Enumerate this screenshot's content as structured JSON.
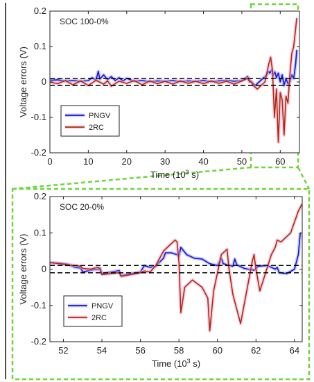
{
  "colors": {
    "pngv": "#1414d2",
    "rc2": "#b12a10",
    "pngv_halo": "#9da4f5",
    "rc2_halo": "#f0a9cc",
    "threshold": "#000000",
    "zoom_box": "#6dd63a",
    "zoom_box_fill": "#eefbe5"
  },
  "chart_data": [
    {
      "type": "line",
      "annotation": "SOC 100-0%",
      "xlabel_main": "Time (10",
      "xlabel_sup": "3",
      "xlabel_end": " s)",
      "ylabel": "Voltage errors (V)",
      "xlim": [
        0,
        65
      ],
      "ylim": [
        -0.2,
        0.2
      ],
      "xticks": [
        0,
        10,
        20,
        30,
        40,
        50,
        60
      ],
      "yticks": [
        -0.2,
        -0.1,
        0,
        0.1,
        0.2
      ],
      "xtick_labels": [
        "0",
        "10",
        "20",
        "30",
        "40",
        "50",
        "60"
      ],
      "ytick_labels": [
        "-0.2",
        "-0.1",
        "0",
        "0.1",
        "0.2"
      ],
      "grid": false,
      "legend_position": "bottom-left",
      "thresholds": [
        0.01,
        -0.01
      ],
      "series": [
        {
          "name": "PNGV",
          "x": [
            0,
            2,
            4,
            6,
            8,
            10,
            11,
            12,
            12.6,
            13,
            14,
            15,
            16,
            17,
            18,
            19,
            20,
            22,
            24,
            26,
            28,
            30,
            32,
            34,
            36,
            38,
            40,
            42,
            44,
            46,
            48,
            50,
            51.5,
            52,
            52.5,
            53.5,
            54.5,
            55.5,
            56.5,
            57,
            57.3,
            57.8,
            58.2,
            58.6,
            59,
            59.5,
            60,
            60.5,
            61,
            61.5,
            62,
            62.5,
            63,
            63.5,
            64,
            64.3
          ],
          "y": [
            0.005,
            0.006,
            0.003,
            0.004,
            0.002,
            0.004,
            0.012,
            0.005,
            0.03,
            0.008,
            0.02,
            0.006,
            0.015,
            0.004,
            0.012,
            0.003,
            0.01,
            0.002,
            0.004,
            0.001,
            0.003,
            0.002,
            0.004,
            0.001,
            0.003,
            0.002,
            0.004,
            0.001,
            0.003,
            0.005,
            0.002,
            0.004,
            0.015,
            0.006,
            0.0,
            -0.01,
            0.0,
            0.01,
            0.02,
            0.03,
            0.025,
            0.035,
            0.02,
            0.028,
            0.012,
            0.025,
            0.0,
            0.02,
            -0.01,
            0.01,
            -0.005,
            0.0,
            0.02,
            0.01,
            0.05,
            0.09
          ]
        },
        {
          "name": "2RC",
          "x": [
            0,
            2,
            4,
            6,
            8,
            10,
            12,
            14,
            15,
            16,
            18,
            20,
            22,
            24,
            26,
            28,
            30,
            32,
            34,
            36,
            38,
            40,
            42,
            44,
            46,
            48,
            50,
            51.5,
            52,
            52.5,
            53,
            54,
            55,
            56,
            57,
            57.5,
            58,
            58.5,
            59,
            59.5,
            60,
            60.5,
            61,
            61.5,
            62,
            62.5,
            63,
            63.5,
            64,
            64.3
          ],
          "y": [
            0.0,
            -0.005,
            0.004,
            -0.008,
            0.003,
            -0.01,
            0.005,
            -0.006,
            0.003,
            -0.012,
            0.002,
            -0.004,
            0.004,
            -0.008,
            0.003,
            -0.005,
            0.002,
            -0.006,
            0.003,
            -0.004,
            0.002,
            -0.005,
            0.003,
            -0.004,
            0.002,
            -0.006,
            0.003,
            0.01,
            0.0,
            0.0,
            -0.01,
            -0.02,
            -0.01,
            0.0,
            0.05,
            0.07,
            0.03,
            -0.1,
            -0.02,
            -0.17,
            -0.03,
            -0.05,
            -0.15,
            -0.04,
            -0.06,
            0.02,
            0.08,
            0.1,
            0.15,
            0.18
          ]
        }
      ]
    },
    {
      "type": "line",
      "annotation": "SOC 20-0%",
      "xlabel_main": "Time (10",
      "xlabel_sup": "3",
      "xlabel_end": " s)",
      "ylabel": "Voltage errors (V)",
      "xlim": [
        51.3,
        64.4
      ],
      "ylim": [
        -0.2,
        0.2
      ],
      "xticks": [
        52,
        54,
        56,
        58,
        60,
        62,
        64
      ],
      "yticks": [
        -0.2,
        -0.1,
        0,
        0.1,
        0.2
      ],
      "xtick_labels": [
        "52",
        "54",
        "56",
        "58",
        "60",
        "62",
        "64"
      ],
      "ytick_labels": [
        "-0.2",
        "-0.1",
        "0",
        "0.1",
        "0.2"
      ],
      "grid": false,
      "legend_position": "bottom-left",
      "thresholds": [
        0.01,
        -0.01
      ],
      "series": [
        {
          "name": "PNGV",
          "x": [
            51.3,
            51.8,
            52.2,
            52.6,
            52.9,
            53.0,
            53.4,
            53.8,
            53.9,
            54.0,
            54.5,
            54.9,
            55.0,
            55.5,
            56.0,
            56.2,
            56.5,
            56.8,
            57.0,
            57.2,
            57.3,
            57.6,
            57.9,
            58.0,
            58.1,
            58.4,
            58.8,
            59.2,
            59.6,
            60.0,
            60.2,
            60.3,
            60.8,
            60.9,
            61.0,
            61.4,
            61.9,
            62.0,
            62.1,
            62.6,
            63.0,
            63.1,
            63.2,
            63.6,
            64.0,
            64.2,
            64.3
          ],
          "y": [
            0.018,
            0.016,
            0.014,
            0.005,
            0.003,
            -0.008,
            -0.003,
            0.0,
            0.003,
            -0.012,
            -0.008,
            -0.004,
            -0.018,
            -0.012,
            -0.008,
            0.01,
            0.005,
            0.008,
            0.02,
            0.03,
            0.045,
            0.045,
            0.04,
            0.035,
            0.06,
            0.04,
            0.03,
            0.028,
            0.015,
            0.01,
            0.03,
            0.015,
            0.008,
            0.028,
            0.012,
            0.002,
            -0.003,
            0.002,
            0.008,
            0.01,
            0.0,
            0.005,
            -0.01,
            -0.012,
            0.0,
            0.04,
            0.1
          ]
        },
        {
          "name": "2RC",
          "x": [
            51.3,
            51.8,
            52.2,
            52.6,
            52.9,
            53.0,
            53.4,
            53.8,
            53.9,
            54.0,
            54.5,
            54.9,
            55.0,
            55.5,
            56.0,
            56.2,
            56.5,
            56.8,
            57.0,
            57.2,
            57.5,
            57.8,
            57.9,
            58.0,
            58.1,
            58.3,
            58.7,
            59.2,
            59.5,
            59.6,
            59.8,
            60.2,
            60.5,
            60.6,
            60.8,
            61.2,
            61.8,
            61.9,
            62.0,
            62.2,
            62.8,
            63.0,
            63.1,
            63.3,
            63.8,
            64.2,
            64.4
          ],
          "y": [
            0.018,
            0.015,
            0.012,
            0.01,
            0.008,
            0.002,
            0.0,
            0.005,
            0.0,
            -0.015,
            -0.012,
            -0.01,
            -0.02,
            -0.015,
            -0.01,
            -0.005,
            -0.008,
            0.01,
            0.03,
            0.05,
            0.065,
            0.08,
            0.075,
            0.02,
            -0.12,
            -0.05,
            -0.03,
            -0.05,
            -0.08,
            -0.17,
            -0.06,
            0.04,
            0.055,
            0.0,
            -0.07,
            -0.15,
            0.02,
            0.04,
            0.0,
            -0.06,
            0.04,
            0.06,
            0.08,
            0.075,
            0.1,
            0.16,
            0.18
          ]
        }
      ]
    }
  ]
}
